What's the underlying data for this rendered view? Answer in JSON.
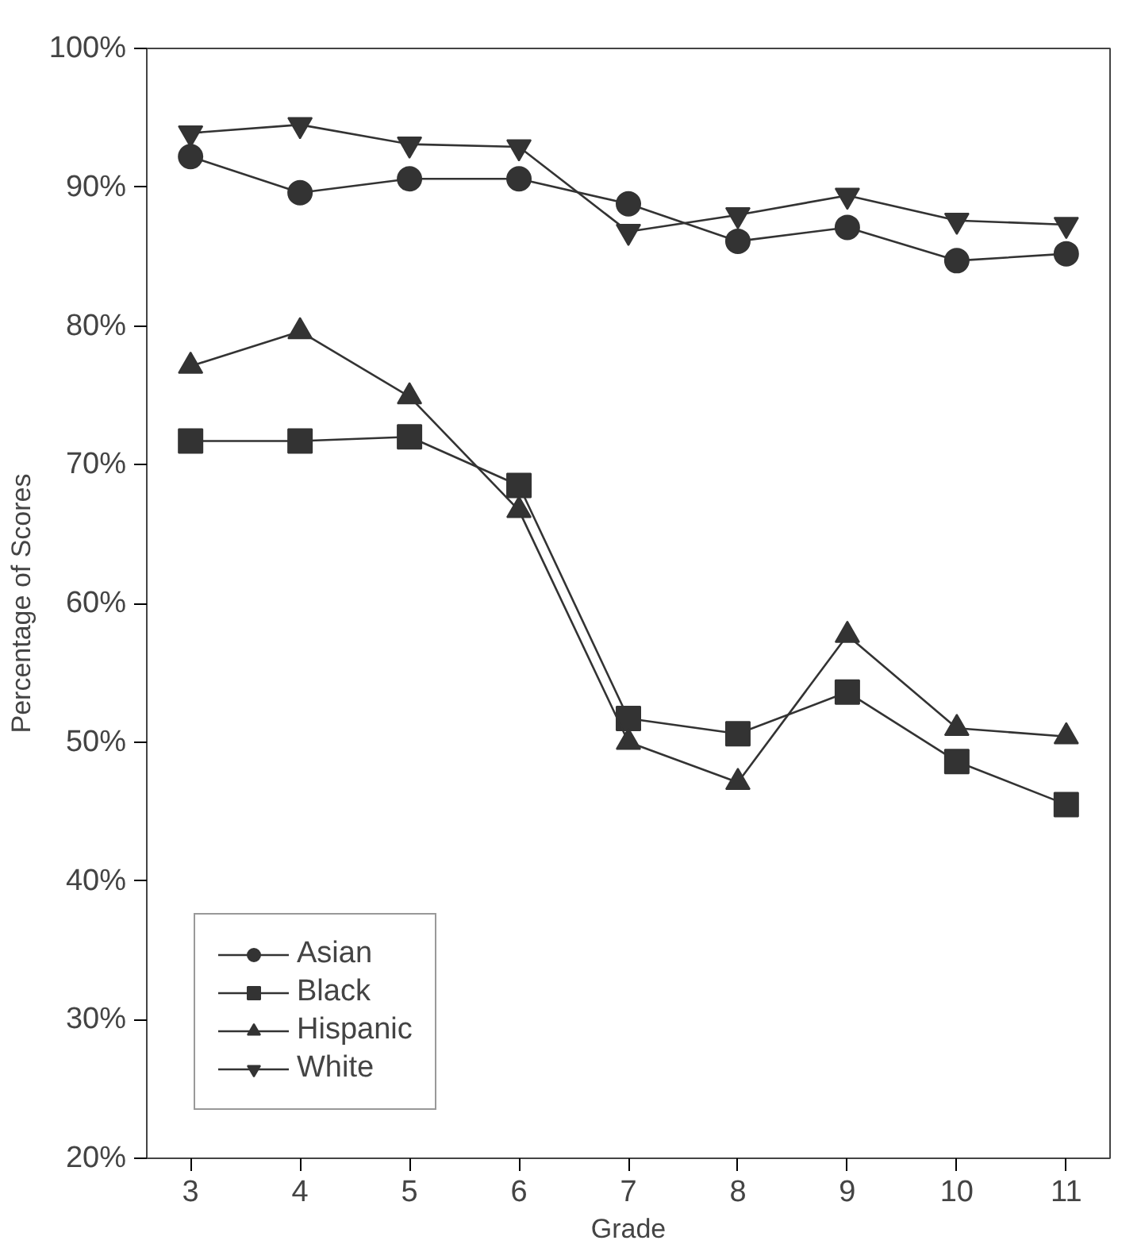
{
  "chart_data": {
    "type": "line",
    "xlabel": "Grade",
    "ylabel": "Percentage of Scores",
    "x": [
      3,
      4,
      5,
      6,
      7,
      8,
      9,
      10,
      11
    ],
    "xlim": [
      2.6,
      11.4
    ],
    "xticks": [
      3,
      4,
      5,
      6,
      7,
      8,
      9,
      10,
      11
    ],
    "ylim": [
      20,
      100
    ],
    "yticks": [
      {
        "value": 20,
        "label": "20%"
      },
      {
        "value": 30,
        "label": "30%"
      },
      {
        "value": 40,
        "label": "40%"
      },
      {
        "value": 50,
        "label": "50%"
      },
      {
        "value": 60,
        "label": "60%"
      },
      {
        "value": 70,
        "label": "70%"
      },
      {
        "value": 80,
        "label": "80%"
      },
      {
        "value": 90,
        "label": "90%"
      },
      {
        "value": 100,
        "label": "100%"
      }
    ],
    "grid": false,
    "legend": "bottom left",
    "series": [
      {
        "name": "Asian",
        "color": "#333333",
        "marker": "circle",
        "values": [
          92.2,
          89.6,
          90.6,
          90.6,
          88.8,
          86.1,
          87.1,
          84.7,
          85.2
        ]
      },
      {
        "name": "Black",
        "color": "#333333",
        "marker": "square",
        "values": [
          71.7,
          71.7,
          72.0,
          68.5,
          51.7,
          50.6,
          53.6,
          48.6,
          45.5
        ]
      },
      {
        "name": "Hispanic",
        "color": "#333333",
        "marker": "triangle",
        "values": [
          77.1,
          79.6,
          74.9,
          66.7,
          50.0,
          47.1,
          57.7,
          51.0,
          50.4
        ]
      },
      {
        "name": "White",
        "color": "#333333",
        "marker": "triangle",
        "values": [
          93.9,
          94.5,
          93.1,
          92.9,
          86.8,
          88.0,
          89.4,
          87.6,
          87.3
        ]
      }
    ]
  }
}
